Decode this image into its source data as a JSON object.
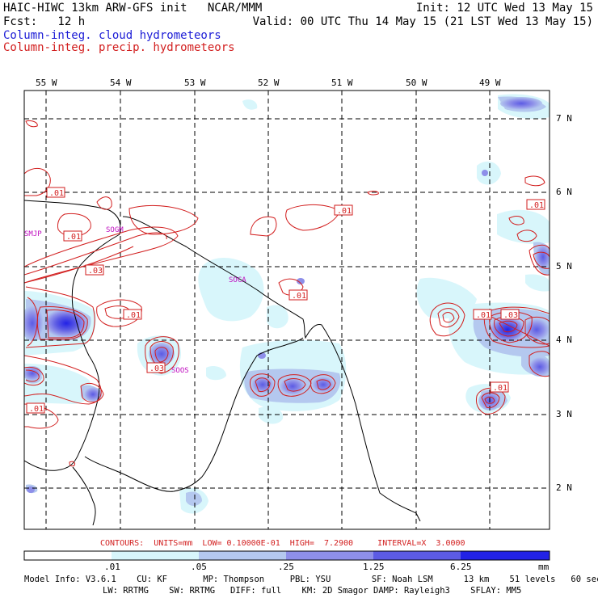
{
  "header": {
    "line1_left": "HAIC-HIWC 13km ARW-GFS init   NCAR/MMM",
    "line1_right": "Init: 12 UTC Wed 13 May 15",
    "line2_left": "Fcst:   12 h",
    "line2_right": "Valid: 00 UTC Thu 14 May 15 (21 LST Wed 13 May 15)",
    "legend_cloud": "Column-integ. cloud hydrometeors",
    "legend_precip": "Column-integ. precip. hydrometeors"
  },
  "map": {
    "lon_labels": [
      "55 W",
      "54 W",
      "53 W",
      "52 W",
      "51 W",
      "50 W",
      "49 W"
    ],
    "lat_labels": [
      "7 N",
      "6 N",
      "5 N",
      "4 N",
      "3 N",
      "2 N"
    ],
    "stations": [
      "SMJP",
      "SOGM",
      "SOCA",
      "SOOS"
    ],
    "contour_labels": [
      ".01",
      ".01",
      ".03",
      ".01",
      ".03",
      ".01",
      ".01",
      ".01",
      ".01",
      ".03",
      ".01",
      ".01"
    ]
  },
  "colors": {
    "cloud_contour": "#1c1cd6",
    "precip_contour": "#d21e1e",
    "shade_levels": [
      "#d8f6fb",
      "#b4c8ef",
      "#8e8fe9",
      "#5c5be4",
      "#2222e6"
    ]
  },
  "footer": {
    "contours": "CONTOURS:  UNITS=mm  LOW= 0.10000E-01  HIGH=  7.2900     INTERVAL=X  3.0000",
    "colorbar_ticks": [
      ".01",
      ".05",
      ".25",
      "1.25",
      "6.25"
    ],
    "colorbar_unit": "mm",
    "model_line1": "Model Info: V3.6.1    CU: KF       MP: Thompson     PBL: YSU        SF: Noah LSM      13 km    51 levels   60 sec",
    "model_line2": "LW: RRTMG    SW: RRTMG   DIFF: full    KM: 2D Smagor DAMP: Rayleigh3    SFLAY: MM5"
  }
}
